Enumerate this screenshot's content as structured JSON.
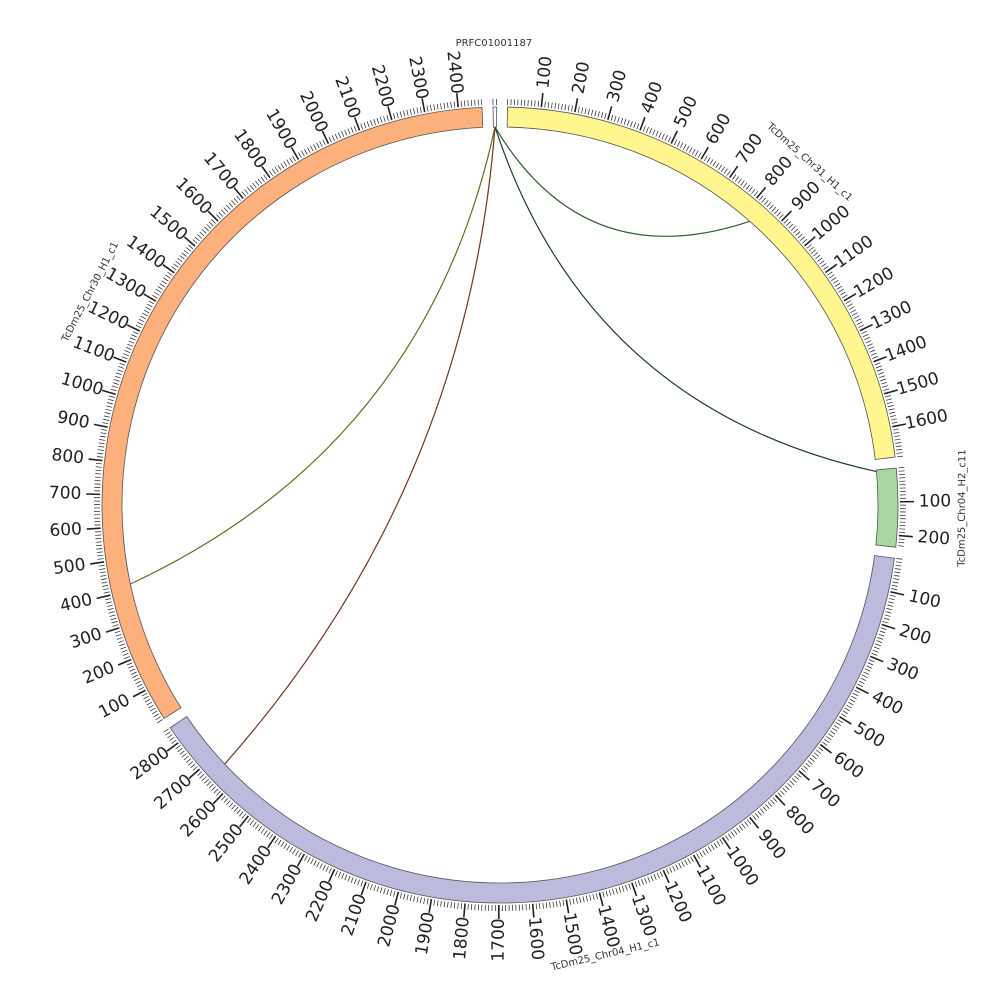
{
  "diagram": {
    "type": "circos",
    "chromosomes": [
      {
        "id": "PRFC01001187",
        "label": "PRFC01001187",
        "length": 10,
        "color": "#ffffff",
        "ticks": []
      },
      {
        "id": "TcDm25_Chr31_H1_c1",
        "label": "TcDm25_Chr31_H1_c1",
        "length": 1690,
        "color": "#fff68f",
        "ticks": [
          "100",
          "200",
          "300",
          "400",
          "500",
          "600",
          "700",
          "800",
          "900",
          "1000",
          "1100",
          "1200",
          "1300",
          "1400",
          "1500",
          "1600"
        ]
      },
      {
        "id": "TcDm25_Chr04_H2_c11",
        "label": "TcDm25_Chr04_H2_c11",
        "length": 235,
        "color": "#a6d9a0",
        "ticks": [
          "100",
          "200"
        ]
      },
      {
        "id": "TcDm25_Chr04_H1_c1",
        "label": "TcDm25_Chr04_H1_c1",
        "length": 2850,
        "color": "#bcbadd",
        "ticks": [
          "100",
          "200",
          "300",
          "400",
          "500",
          "600",
          "700",
          "800",
          "900",
          "1000",
          "1100",
          "1200",
          "1300",
          "1400",
          "1500",
          "1600",
          "1700",
          "1800",
          "1900",
          "2000",
          "2100",
          "2200",
          "2300",
          "2400",
          "2500",
          "2600",
          "2700",
          "2800"
        ]
      },
      {
        "id": "TcDm25_Chr30_H1_c1",
        "label": "TcDm25_Chr30_H1_c1",
        "length": 2470,
        "color": "#fcb07c",
        "ticks": [
          "100",
          "200",
          "300",
          "400",
          "500",
          "600",
          "700",
          "800",
          "900",
          "1000",
          "1100",
          "1200",
          "1300",
          "1400",
          "1500",
          "1600",
          "1700",
          "1800",
          "1900",
          "2000",
          "2100",
          "2200",
          "2300",
          "2400"
        ]
      }
    ],
    "links": [
      {
        "from": "PRFC01001187",
        "from_pos": 5,
        "to": "TcDm25_Chr31_H1_c1",
        "to_pos": 830,
        "color": "#2f5f2f"
      },
      {
        "from": "PRFC01001187",
        "from_pos": 5,
        "to": "TcDm25_Chr04_H2_c11",
        "to_pos": 5,
        "color": "#1f3f2f"
      },
      {
        "from": "PRFC01001187",
        "from_pos": 5,
        "to": "TcDm25_Chr30_H1_c1",
        "to_pos": 420,
        "color": "#6b6b1f"
      },
      {
        "from": "PRFC01001187",
        "from_pos": 5,
        "to": "TcDm25_Chr04_H1_c1",
        "to_pos": 2660,
        "color": "#6b3a1f"
      }
    ]
  }
}
